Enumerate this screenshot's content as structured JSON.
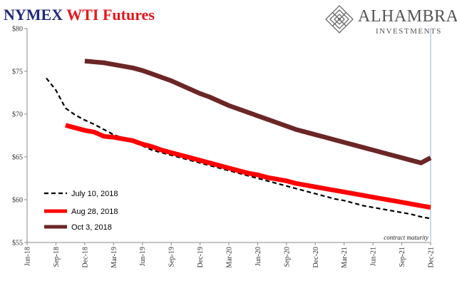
{
  "title": {
    "part1": "NYMEX",
    "part2": "WTI Futures"
  },
  "logo": {
    "name": "ALHAMBRA",
    "sub": "INVESTMENTS"
  },
  "chart_data": {
    "type": "line",
    "title": "NYMEX WTI Futures",
    "xlabel": "",
    "ylabel": "",
    "ylim": [
      55,
      80
    ],
    "y_ticks": [
      "$55",
      "$60",
      "$65",
      "$70",
      "$75",
      "$80"
    ],
    "y_tick_values": [
      55,
      60,
      65,
      70,
      75,
      80
    ],
    "x_ticks": [
      "Jun-18",
      "Sep-18",
      "Dec-18",
      "Mar-19",
      "Jun-19",
      "Sep-19",
      "Dec-19",
      "Mar-20",
      "Jun-20",
      "Sep-20",
      "Dec-20",
      "Mar-21",
      "Jun-21",
      "Sep-21",
      "Dec-21"
    ],
    "annotation": "contract maturity",
    "legend_position": "bottom-left",
    "series": [
      {
        "name": "July 10, 2018",
        "color": "#000000",
        "style": "dashed",
        "x": [
          "Aug-18",
          "Sep-18",
          "Oct-18",
          "Nov-18",
          "Dec-18",
          "Jan-19",
          "Feb-19",
          "Mar-19",
          "Apr-19",
          "May-19",
          "Jun-19",
          "Jul-19",
          "Aug-19",
          "Sep-19",
          "Oct-19",
          "Nov-19",
          "Dec-19",
          "Jan-20",
          "Feb-20",
          "Mar-20",
          "Apr-20",
          "May-20",
          "Jun-20",
          "Jul-20",
          "Aug-20",
          "Sep-20",
          "Oct-20",
          "Nov-20",
          "Dec-20",
          "Jan-21",
          "Feb-21",
          "Mar-21",
          "Apr-21",
          "May-21",
          "Jun-21",
          "Jul-21",
          "Aug-21",
          "Sep-21",
          "Oct-21",
          "Nov-21",
          "Dec-21"
        ],
        "values": [
          74.2,
          72.8,
          70.7,
          69.9,
          69.3,
          68.8,
          68.2,
          67.6,
          67.2,
          66.7,
          66.3,
          65.8,
          65.5,
          65.2,
          64.9,
          64.6,
          64.3,
          64.0,
          63.7,
          63.4,
          63.1,
          62.8,
          62.5,
          62.2,
          61.9,
          61.6,
          61.3,
          61.0,
          60.7,
          60.4,
          60.1,
          59.9,
          59.6,
          59.3,
          59.1,
          58.9,
          58.7,
          58.5,
          58.3,
          58.0,
          57.8
        ]
      },
      {
        "name": "Aug 28, 2018",
        "color": "#ff0000",
        "style": "solid",
        "x": [
          "Oct-18",
          "Nov-18",
          "Dec-18",
          "Jan-19",
          "Feb-19",
          "Mar-19",
          "Apr-19",
          "May-19",
          "Jun-19",
          "Jul-19",
          "Aug-19",
          "Sep-19",
          "Oct-19",
          "Nov-19",
          "Dec-19",
          "Jan-20",
          "Feb-20",
          "Mar-20",
          "Apr-20",
          "May-20",
          "Jun-20",
          "Jul-20",
          "Aug-20",
          "Sep-20",
          "Oct-20",
          "Nov-20",
          "Dec-20",
          "Jan-21",
          "Feb-21",
          "Mar-21",
          "Apr-21",
          "May-21",
          "Jun-21",
          "Jul-21",
          "Aug-21",
          "Sep-21",
          "Oct-21",
          "Nov-21",
          "Dec-21"
        ],
        "values": [
          68.7,
          68.4,
          68.1,
          67.9,
          67.4,
          67.3,
          67.1,
          66.9,
          66.5,
          66.2,
          65.8,
          65.5,
          65.2,
          64.9,
          64.6,
          64.3,
          64.0,
          63.7,
          63.4,
          63.1,
          62.9,
          62.6,
          62.4,
          62.2,
          61.9,
          61.7,
          61.5,
          61.3,
          61.1,
          60.9,
          60.7,
          60.5,
          60.3,
          60.1,
          59.9,
          59.7,
          59.5,
          59.3,
          59.1
        ]
      },
      {
        "name": "Oct 3, 2018",
        "color": "#6b2626",
        "style": "solid",
        "x": [
          "Dec-18",
          "Jan-19",
          "Feb-19",
          "Mar-19",
          "Apr-19",
          "May-19",
          "Jun-19",
          "Jul-19",
          "Aug-19",
          "Sep-19",
          "Oct-19",
          "Nov-19",
          "Dec-19",
          "Jan-20",
          "Feb-20",
          "Mar-20",
          "Apr-20",
          "May-20",
          "Jun-20",
          "Jul-20",
          "Aug-20",
          "Sep-20",
          "Oct-20",
          "Nov-20",
          "Dec-20",
          "Jan-21",
          "Feb-21",
          "Mar-21",
          "Apr-21",
          "May-21",
          "Jun-21",
          "Jul-21",
          "Aug-21",
          "Sep-21",
          "Oct-21",
          "Nov-21",
          "Dec-21"
        ],
        "values": [
          76.2,
          76.1,
          76.0,
          75.8,
          75.6,
          75.4,
          75.1,
          74.7,
          74.3,
          73.9,
          73.4,
          72.9,
          72.4,
          72.0,
          71.5,
          71.0,
          70.6,
          70.2,
          69.8,
          69.4,
          69.0,
          68.6,
          68.2,
          67.9,
          67.6,
          67.3,
          67.0,
          66.7,
          66.4,
          66.1,
          65.8,
          65.5,
          65.2,
          64.9,
          64.6,
          64.3,
          64.9
        ]
      }
    ]
  }
}
